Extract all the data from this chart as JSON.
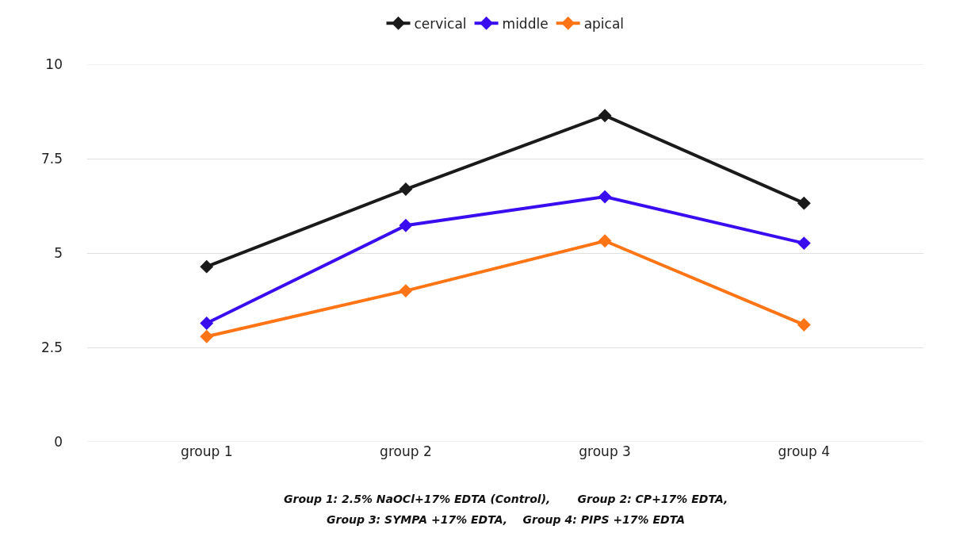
{
  "chart_data": {
    "type": "line",
    "categories": [
      "group 1",
      "group 2",
      "group 3",
      "group 4"
    ],
    "series": [
      {
        "name": "cervical",
        "color": "#1a1a1a",
        "values": [
          4.64,
          6.69,
          8.64,
          6.32
        ]
      },
      {
        "name": "middle",
        "color": "#3a0cf0",
        "values": [
          3.14,
          5.73,
          6.49,
          5.26
        ]
      },
      {
        "name": "apical",
        "color": "#ff7414",
        "values": [
          2.79,
          4.0,
          5.32,
          3.1
        ]
      }
    ],
    "ylim": [
      0,
      10
    ],
    "yticks": [
      0,
      2.5,
      5,
      7.5,
      10
    ],
    "grid": "y",
    "legend": "top",
    "marker": "diamond",
    "line_style": "solid",
    "annotations": [
      "Group 1: 2.5% NaOCl+17% EDTA (Control),       Group 2: CP+17% EDTA,",
      "Group 3: SYMPA +17% EDTA,    Group 4: PIPS +17% EDTA"
    ]
  }
}
